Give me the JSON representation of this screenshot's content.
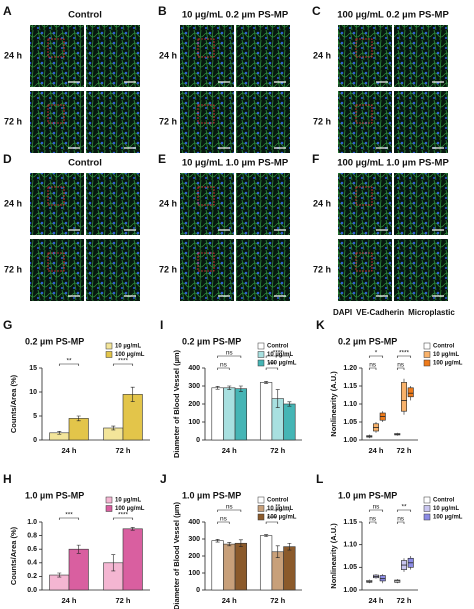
{
  "panels": [
    {
      "label": "A",
      "title": "Control",
      "rows": [
        "24 h",
        "72 h"
      ]
    },
    {
      "label": "B",
      "title": "10 µg/mL 0.2 µm PS-MP",
      "rows": [
        "24 h",
        "72 h"
      ]
    },
    {
      "label": "C",
      "title": "100 µg/mL 0.2 µm PS-MP",
      "rows": [
        "24 h",
        "72 h"
      ]
    },
    {
      "label": "D",
      "title": "Control",
      "rows": [
        "24 h",
        "72 h"
      ]
    },
    {
      "label": "E",
      "title": "10 µg/mL 1.0 µm PS-MP",
      "rows": [
        "24 h",
        "72 h"
      ]
    },
    {
      "label": "F",
      "title": "100 µg/mL 1.0 µm PS-MP",
      "rows": [
        "24 h",
        "72 h"
      ]
    }
  ],
  "stain_legend": [
    {
      "name": "DAPI",
      "color": "#1f5fbf"
    },
    {
      "name": "VE-Cadherin",
      "color": "#1a9a3a"
    },
    {
      "name": "Microplastic",
      "color": "#e0303a"
    }
  ],
  "chart_data": [
    {
      "type": "bar",
      "label": "G",
      "title": "0.2 µm PS-MP",
      "y_label": "Counts/Area (%)",
      "categories": [
        "24 h",
        "72 h"
      ],
      "series": [
        {
          "name": "10 µg/mL",
          "color": "#f3e59a",
          "values": [
            1.5,
            2.5
          ],
          "errors": [
            0.3,
            0.4
          ]
        },
        {
          "name": "100 µg/mL",
          "color": "#e3c54a",
          "values": [
            4.5,
            9.5
          ],
          "errors": [
            0.5,
            1.5
          ]
        }
      ],
      "ylim": [
        0,
        15
      ],
      "yticks": [
        0,
        5,
        10,
        15
      ],
      "significance": [
        [
          "**"
        ],
        [
          "****"
        ]
      ],
      "legend": "upper right"
    },
    {
      "type": "bar",
      "label": "H",
      "title": "1.0 µm PS-MP",
      "y_label": "Counts/Area (%)",
      "categories": [
        "24 h",
        "72 h"
      ],
      "series": [
        {
          "name": "10 µg/mL",
          "color": "#f4b6d2",
          "values": [
            0.22,
            0.4
          ],
          "errors": [
            0.03,
            0.12
          ]
        },
        {
          "name": "100 µg/mL",
          "color": "#d95fa0",
          "values": [
            0.6,
            0.9
          ],
          "errors": [
            0.06,
            0.02
          ]
        }
      ],
      "ylim": [
        0,
        1
      ],
      "yticks": [
        {
          "value": 0,
          "label": "0.0"
        },
        0.2,
        0.4,
        0.6,
        0.8,
        {
          "value": 1,
          "label": "1.0"
        }
      ],
      "significance": [
        [
          "***"
        ],
        [
          "****"
        ]
      ],
      "legend": "upper right"
    },
    {
      "type": "bar",
      "label": "I",
      "title": "0.2 µm PS-MP",
      "y_label": "Diameter of Blood Vessel (µm)",
      "categories": [
        "24 h",
        "72 h"
      ],
      "series": [
        {
          "name": "Control",
          "color": "#ffffff",
          "values": [
            290,
            320
          ],
          "errors": [
            8,
            6
          ]
        },
        {
          "name": "10 µg/mL",
          "color": "#a8e0e0",
          "values": [
            290,
            230
          ],
          "errors": [
            10,
            50
          ]
        },
        {
          "name": "100 µg/mL",
          "color": "#45b5b5",
          "values": [
            285,
            200
          ],
          "errors": [
            15,
            12
          ]
        }
      ],
      "ylim": [
        0,
        400
      ],
      "yticks": [
        0,
        100,
        200,
        300,
        400
      ],
      "significance": [
        [
          "ns",
          "ns"
        ],
        [
          "****",
          "***"
        ]
      ],
      "legend": "upper right"
    },
    {
      "type": "bar",
      "label": "J",
      "title": "1.0 µm PS-MP",
      "y_label": "Diameter of Blood Vessel (µm)",
      "categories": [
        "24 h",
        "72 h"
      ],
      "series": [
        {
          "name": "Control",
          "color": "#ffffff",
          "values": [
            290,
            320
          ],
          "errors": [
            8,
            6
          ]
        },
        {
          "name": "10 µg/mL",
          "color": "#c8a07a",
          "values": [
            270,
            225
          ],
          "errors": [
            10,
            35
          ]
        },
        {
          "name": "100 µg/mL",
          "color": "#8b5a2b",
          "values": [
            275,
            255
          ],
          "errors": [
            20,
            20
          ]
        }
      ],
      "ylim": [
        0,
        400
      ],
      "yticks": [
        0,
        100,
        200,
        300,
        400
      ],
      "significance": [
        [
          "ns",
          "ns"
        ],
        [
          "**",
          "****"
        ]
      ],
      "legend": "upper right"
    },
    {
      "type": "box",
      "label": "K",
      "title": "0.2 µm PS-MP",
      "y_label": "Nonlinearity (A.U.)",
      "categories": [
        "24 h",
        "72 h"
      ],
      "series": [
        {
          "name": "Control",
          "color": "#ffffff",
          "values": [
            [
              1.005,
              1.008,
              1.01,
              1.012,
              1.015
            ],
            [
              1.012,
              1.014,
              1.016,
              1.018,
              1.02
            ]
          ]
        },
        {
          "name": "10 µg/mL",
          "color": "#f9b26a",
          "values": [
            [
              1.02,
              1.025,
              1.035,
              1.045,
              1.05
            ],
            [
              1.07,
              1.08,
              1.11,
              1.16,
              1.17
            ]
          ]
        },
        {
          "name": "100 µg/mL",
          "color": "#ef7b1a",
          "values": [
            [
              1.05,
              1.055,
              1.065,
              1.075,
              1.08
            ],
            [
              1.11,
              1.12,
              1.13,
              1.145,
              1.15
            ]
          ]
        }
      ],
      "ylim": [
        1,
        1.2
      ],
      "yticks": [
        {
          "value": 1,
          "label": "1.00"
        },
        1.05,
        {
          "value": 1.1,
          "label": "1.10"
        },
        1.15,
        {
          "value": 1.2,
          "label": "1.20"
        }
      ],
      "significance": [
        [
          "*",
          "ns"
        ],
        [
          "****",
          "ns"
        ]
      ],
      "legend": "right"
    },
    {
      "type": "box",
      "label": "L",
      "title": "1.0 µm PS-MP",
      "y_label": "Nonlinearity (A.U.)",
      "categories": [
        "24 h",
        "72 h"
      ],
      "series": [
        {
          "name": "Control",
          "color": "#ffffff",
          "values": [
            [
              1.015,
              1.017,
              1.019,
              1.021,
              1.023
            ],
            [
              1.015,
              1.017,
              1.02,
              1.022,
              1.024
            ]
          ]
        },
        {
          "name": "10 µg/mL",
          "color": "#c9c6f0",
          "values": [
            [
              1.025,
              1.027,
              1.03,
              1.033,
              1.035
            ],
            [
              1.04,
              1.045,
              1.055,
              1.065,
              1.07
            ]
          ]
        },
        {
          "name": "100 µg/mL",
          "color": "#8c8ce6",
          "values": [
            [
              1.015,
              1.02,
              1.025,
              1.032,
              1.035
            ],
            [
              1.045,
              1.05,
              1.06,
              1.07,
              1.075
            ]
          ]
        }
      ],
      "ylim": [
        1,
        1.15
      ],
      "yticks": [
        {
          "value": 1,
          "label": "1.00"
        },
        1.05,
        {
          "value": 1.1,
          "label": "1.10"
        },
        1.15
      ],
      "significance": [
        [
          "ns",
          "ns"
        ],
        [
          "**",
          "ns"
        ]
      ],
      "legend": "right"
    }
  ]
}
